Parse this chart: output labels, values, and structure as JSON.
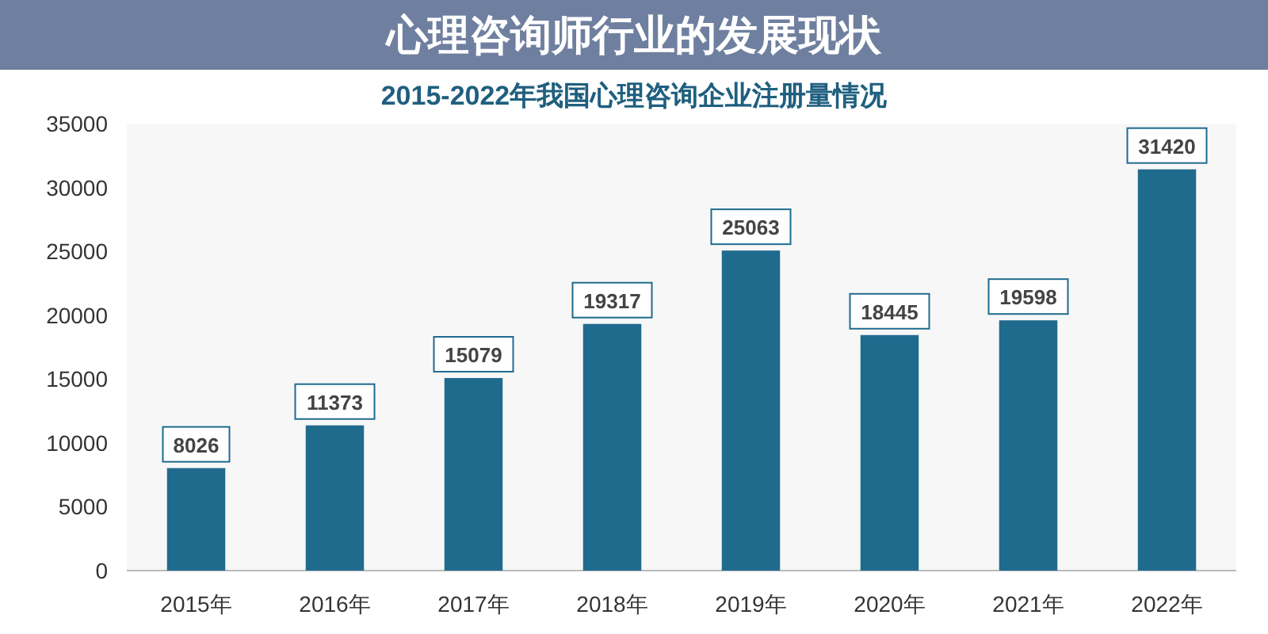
{
  "chart_data": {
    "type": "bar",
    "title": "心理咨询师行业的发展现状",
    "subtitle": "2015-2022年我国心理咨询企业注册量情况",
    "categories": [
      "2015年",
      "2016年",
      "2017年",
      "2018年",
      "2019年",
      "2020年",
      "2021年",
      "2022年"
    ],
    "values": [
      8026,
      11373,
      15079,
      19317,
      25063,
      18445,
      19598,
      31420
    ],
    "color": "#1f6b8e",
    "ylim": [
      0,
      35000
    ],
    "yticks": [
      0,
      5000,
      10000,
      15000,
      20000,
      25000,
      30000,
      35000
    ],
    "data_labels": true
  }
}
